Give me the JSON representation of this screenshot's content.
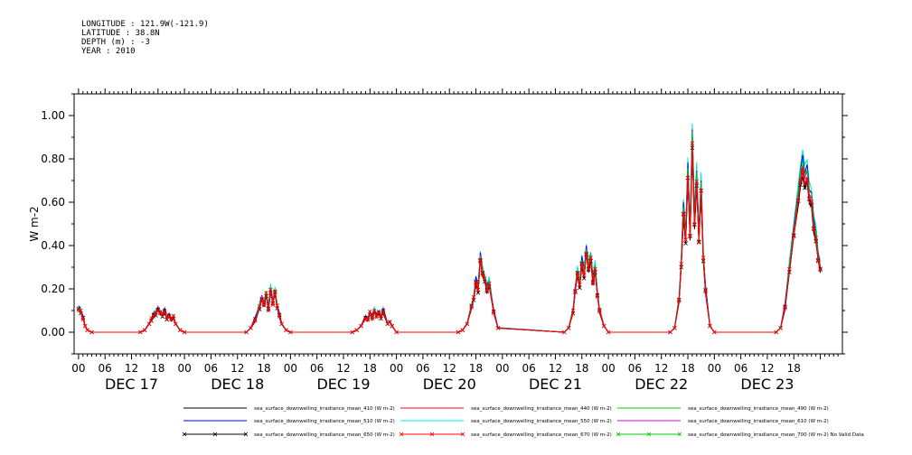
{
  "header": {
    "longitude": "LONGITUDE : 121.9W(-121.9)",
    "latitude": "LATITUDE : 38.8N",
    "depth": "DEPTH (m) : -3",
    "year": "YEAR : 2010"
  },
  "chart_data": {
    "type": "line",
    "ylabel": "W m-2",
    "xlabel": "",
    "ylim": [
      -0.1,
      1.1
    ],
    "x_unit": "hours since DEC 17 00",
    "xlim": [
      -1,
      173
    ],
    "yticks": [
      "0.00",
      "0.20",
      "0.40",
      "0.60",
      "0.80",
      "1.00"
    ],
    "ytick_values": [
      0,
      0.2,
      0.4,
      0.6,
      0.8,
      1.0
    ],
    "xticks": [
      "00",
      "06",
      "12",
      "18",
      "00",
      "06",
      "12",
      "18",
      "00",
      "06",
      "12",
      "18",
      "00",
      "06",
      "12",
      "18",
      "00",
      "06",
      "12",
      "18",
      "00",
      "06",
      "12",
      "18",
      "00",
      "06",
      "12",
      "18"
    ],
    "xtick_values": [
      0,
      6,
      12,
      18,
      24,
      30,
      36,
      42,
      48,
      54,
      60,
      66,
      72,
      78,
      84,
      90,
      96,
      102,
      108,
      114,
      120,
      126,
      132,
      138,
      144,
      150,
      156,
      162
    ],
    "day_labels": [
      "DEC 17",
      "DEC 18",
      "DEC 19",
      "DEC 20",
      "DEC 21",
      "DEC 22",
      "DEC 23"
    ],
    "grid": false,
    "legend_position": "bottom",
    "series": [
      {
        "name": "sea_surface_downwelling_irradiance_mean_410 (W m-2)",
        "color": "#000000",
        "marker": "none",
        "scale": 0.93
      },
      {
        "name": "sea_surface_downwelling_irradiance_mean_440 (W m-2)",
        "color": "#ff0000",
        "marker": "none",
        "scale": 0.97
      },
      {
        "name": "sea_surface_downwelling_irradiance_mean_490 (W m-2)",
        "color": "#00cc00",
        "marker": "none",
        "scale": 1.02
      },
      {
        "name": "sea_surface_downwelling_irradiance_mean_510 (W m-2)",
        "color": "#0000ff",
        "marker": "none",
        "scale": 1.04
      },
      {
        "name": "sea_surface_downwelling_irradiance_mean_550 (W m-2)",
        "color": "#00e5e5",
        "marker": "none",
        "scale": 1.08
      },
      {
        "name": "sea_surface_downwelling_irradiance_mean_610 (W m-2)",
        "color": "#e000e0",
        "marker": "none",
        "scale": 1.0
      },
      {
        "name": "sea_surface_downwelling_irradiance_mean_650 (W m-2)",
        "color": "#000000",
        "marker": "x",
        "scale": 0.95
      },
      {
        "name": "sea_surface_downwelling_irradiance_mean_670 (W m-2)",
        "color": "#ff0000",
        "marker": "x",
        "scale": 0.96
      },
      {
        "name": "sea_surface_downwelling_irradiance_mean_700 (W m-2) No Valid Data",
        "color": "#00cc00",
        "marker": "x",
        "scale": 0
      }
    ],
    "base_profile": {
      "x": [
        0,
        0.5,
        1,
        1.5,
        2,
        3,
        14,
        15,
        16,
        16.5,
        17,
        17.5,
        18,
        18.5,
        19,
        19.5,
        20,
        20.5,
        21,
        21.5,
        22,
        23,
        24,
        38,
        39,
        40,
        41,
        41.5,
        42,
        42.5,
        43,
        43.5,
        44,
        44.5,
        45,
        45.5,
        46,
        47,
        48,
        62,
        63,
        64,
        65,
        65.5,
        66,
        66.5,
        67,
        67.5,
        68,
        68.5,
        69,
        70,
        70.5,
        71,
        72,
        86,
        87,
        88,
        89,
        89.5,
        90,
        90.5,
        91,
        91.5,
        92,
        92.5,
        93,
        94,
        95,
        110,
        111,
        112,
        112.5,
        113,
        113.5,
        114,
        114.5,
        115,
        115.5,
        116,
        116.5,
        117,
        117.5,
        118,
        119,
        120,
        134,
        135,
        136,
        136.5,
        137,
        137.5,
        138,
        138.5,
        139,
        139.5,
        140,
        140.5,
        141,
        141.5,
        142,
        143,
        144,
        158,
        159,
        160,
        161,
        162,
        163,
        163.5,
        164,
        164.5,
        165,
        165.5,
        166,
        166.5,
        167,
        167.5,
        168
      ],
      "y": [
        0.11,
        0.1,
        0.07,
        0.03,
        0.01,
        0,
        0,
        0.01,
        0.04,
        0.06,
        0.08,
        0.09,
        0.11,
        0.09,
        0.08,
        0.1,
        0.07,
        0.08,
        0.06,
        0.07,
        0.04,
        0.01,
        0,
        0,
        0.02,
        0.06,
        0.12,
        0.16,
        0.13,
        0.18,
        0.11,
        0.2,
        0.14,
        0.19,
        0.12,
        0.08,
        0.04,
        0.01,
        0,
        0,
        0.01,
        0.03,
        0.07,
        0.06,
        0.09,
        0.07,
        0.1,
        0.08,
        0.09,
        0.07,
        0.1,
        0.04,
        0.05,
        0.03,
        0,
        0,
        0.01,
        0.04,
        0.12,
        0.16,
        0.24,
        0.2,
        0.35,
        0.28,
        0.25,
        0.2,
        0.23,
        0.1,
        0.02,
        0,
        0.02,
        0.1,
        0.2,
        0.28,
        0.22,
        0.33,
        0.27,
        0.38,
        0.3,
        0.35,
        0.24,
        0.3,
        0.18,
        0.1,
        0.03,
        0,
        0,
        0.02,
        0.15,
        0.32,
        0.57,
        0.44,
        0.75,
        0.46,
        0.9,
        0.52,
        0.72,
        0.44,
        0.68,
        0.35,
        0.2,
        0.03,
        0,
        0,
        0.02,
        0.12,
        0.3,
        0.47,
        0.63,
        0.72,
        0.78,
        0.71,
        0.74,
        0.64,
        0.62,
        0.5,
        0.45,
        0.35,
        0.3
      ]
    }
  },
  "legend": [
    "sea_surface_downwelling_irradiance_mean_410 (W m-2)",
    "sea_surface_downwelling_irradiance_mean_440 (W m-2)",
    "sea_surface_downwelling_irradiance_mean_490 (W m-2)",
    "sea_surface_downwelling_irradiance_mean_510 (W m-2)",
    "sea_surface_downwelling_irradiance_mean_550 (W m-2)",
    "sea_surface_downwelling_irradiance_mean_610 (W m-2)",
    "sea_surface_downwelling_irradiance_mean_650 (W m-2)",
    "sea_surface_downwelling_irradiance_mean_670 (W m-2)",
    "sea_surface_downwelling_irradiance_mean_700 (W m-2) No Valid Data"
  ]
}
